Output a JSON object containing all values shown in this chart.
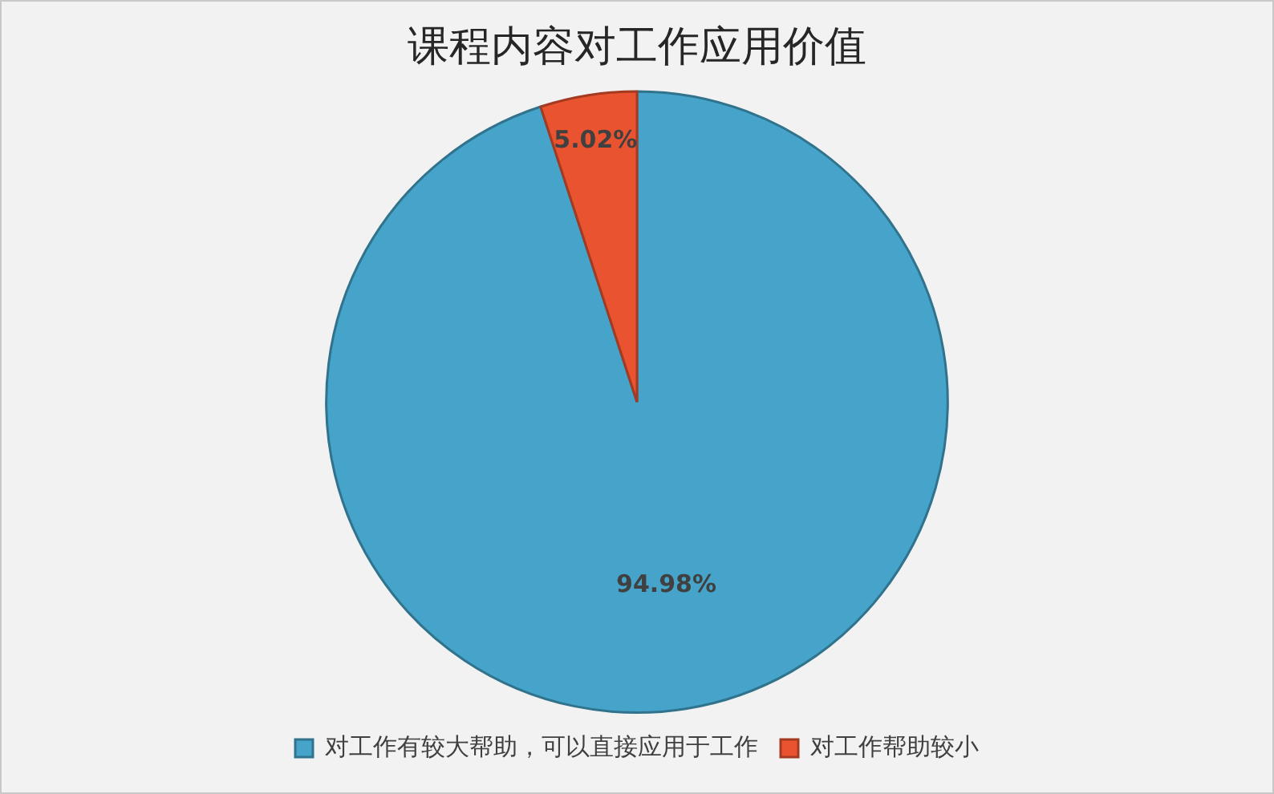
{
  "chart_data": {
    "type": "pie",
    "title": "课程内容对工作应用价值",
    "categories": [
      "对工作有较大帮助，可以直接应用于工作",
      "对工作帮助较小"
    ],
    "values": [
      94.98,
      5.02
    ],
    "colors": [
      "#46a3c9",
      "#e9532f"
    ],
    "value_labels": [
      "94.98%",
      "5.02%"
    ],
    "legend": "bottom"
  }
}
